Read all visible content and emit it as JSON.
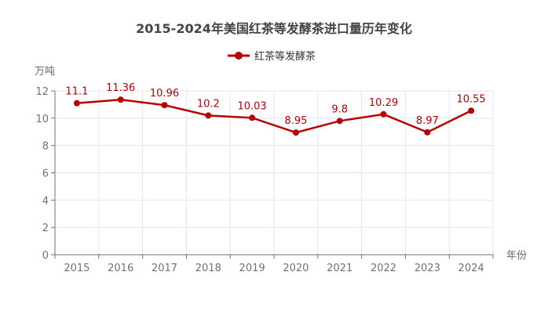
{
  "chart_data": {
    "type": "line",
    "title": "2015-2024年美国红茶等发酵茶进口量历年变化",
    "xlabel": "年份",
    "ylabel": "万吨",
    "categories": [
      "2015",
      "2016",
      "2017",
      "2018",
      "2019",
      "2020",
      "2021",
      "2022",
      "2023",
      "2024"
    ],
    "series": [
      {
        "name": "红茶等发酵茶",
        "values": [
          11.1,
          11.36,
          10.96,
          10.2,
          10.03,
          8.95,
          9.8,
          10.29,
          8.97,
          10.55
        ],
        "color": "#b80000"
      }
    ],
    "ylim": [
      0,
      12
    ],
    "yticks": [
      0,
      2,
      4,
      6,
      8,
      10,
      12
    ],
    "grid": true,
    "legend": "top-center"
  }
}
